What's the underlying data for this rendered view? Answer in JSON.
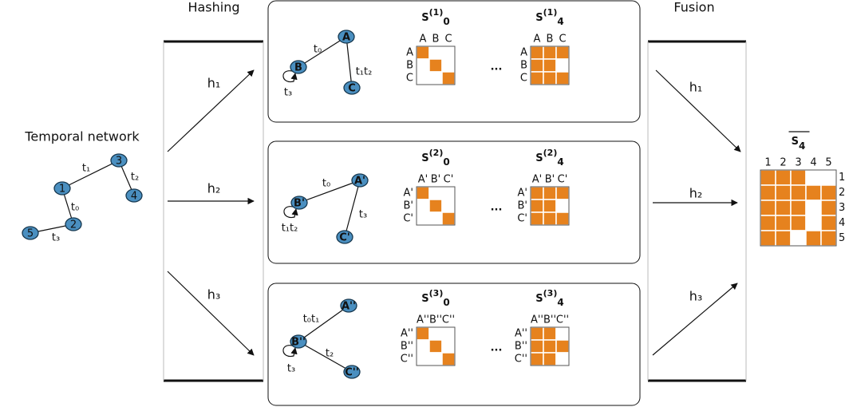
{
  "labels": {
    "hashing": "Hashing",
    "fusion": "Fusion",
    "input": "Temporal network"
  },
  "network": {
    "nodes": [
      "1",
      "2",
      "3",
      "4",
      "5"
    ],
    "edges": [
      "t₁",
      "t₂",
      "t₀",
      "t₃"
    ]
  },
  "hash_left": [
    "h₁",
    "h₂",
    "h₃"
  ],
  "hash_right": [
    "h₁",
    "h₂",
    "h₃"
  ],
  "panels": [
    {
      "graph": {
        "nodes": [
          "A",
          "B",
          "C"
        ],
        "edges": [
          "t₀",
          "t₁t₂",
          "t₃"
        ]
      },
      "ellipsis": "...",
      "matrices": [
        {
          "title": {
            "base": "S",
            "sup": "(1)",
            "sub": "0"
          },
          "cols": [
            "A",
            "B",
            "C"
          ],
          "rows": [
            "A",
            "B",
            "C"
          ],
          "cells": [
            [
              1,
              0,
              0
            ],
            [
              0,
              1,
              0
            ],
            [
              0,
              0,
              1
            ]
          ]
        },
        {
          "title": {
            "base": "S",
            "sup": "(1)",
            "sub": "4"
          },
          "cols": [
            "A",
            "B",
            "C"
          ],
          "rows": [
            "A",
            "B",
            "C"
          ],
          "cells": [
            [
              1,
              1,
              1
            ],
            [
              1,
              1,
              0
            ],
            [
              1,
              1,
              1
            ]
          ]
        }
      ]
    },
    {
      "graph": {
        "nodes": [
          "A'",
          "B'",
          "C'"
        ],
        "edges": [
          "t₀",
          "t₃",
          "t₁t₂"
        ]
      },
      "ellipsis": "...",
      "matrices": [
        {
          "title": {
            "base": "S",
            "sup": "(2)",
            "sub": "0"
          },
          "cols": [
            "A'",
            "B'",
            "C'"
          ],
          "rows": [
            "A'",
            "B'",
            "C'"
          ],
          "cells": [
            [
              1,
              0,
              0
            ],
            [
              0,
              1,
              0
            ],
            [
              0,
              0,
              1
            ]
          ]
        },
        {
          "title": {
            "base": "S",
            "sup": "(2)",
            "sub": "4"
          },
          "cols": [
            "A'",
            "B'",
            "C'"
          ],
          "rows": [
            "A'",
            "B'",
            "C'"
          ],
          "cells": [
            [
              1,
              1,
              1
            ],
            [
              1,
              1,
              0
            ],
            [
              1,
              1,
              1
            ]
          ]
        }
      ]
    },
    {
      "graph": {
        "nodes": [
          "A''",
          "B''",
          "C''"
        ],
        "edges": [
          "t₀t₁",
          "t₂",
          "t₃"
        ]
      },
      "ellipsis": "...",
      "matrices": [
        {
          "title": {
            "base": "S",
            "sup": "(3)",
            "sub": "0"
          },
          "cols": [
            "A''",
            "B''",
            "C''"
          ],
          "rows": [
            "A''",
            "B''",
            "C''"
          ],
          "cells": [
            [
              1,
              0,
              0
            ],
            [
              0,
              1,
              0
            ],
            [
              0,
              0,
              1
            ]
          ]
        },
        {
          "title": {
            "base": "S",
            "sup": "(3)",
            "sub": "4"
          },
          "cols": [
            "A''",
            "B''",
            "C''"
          ],
          "rows": [
            "A''",
            "B''",
            "C''"
          ],
          "cells": [
            [
              1,
              1,
              0
            ],
            [
              1,
              1,
              1
            ],
            [
              1,
              1,
              0
            ]
          ]
        }
      ]
    }
  ],
  "result": {
    "title": {
      "base": "S",
      "sub": "4"
    },
    "cols": [
      "1",
      "2",
      "3",
      "4",
      "5"
    ],
    "rows": [
      "1",
      "2",
      "3",
      "4",
      "5"
    ],
    "cells": [
      [
        1,
        1,
        1,
        0,
        0
      ],
      [
        1,
        1,
        1,
        1,
        1
      ],
      [
        1,
        1,
        1,
        0,
        1
      ],
      [
        1,
        1,
        1,
        0,
        1
      ],
      [
        1,
        1,
        0,
        1,
        1
      ]
    ]
  }
}
